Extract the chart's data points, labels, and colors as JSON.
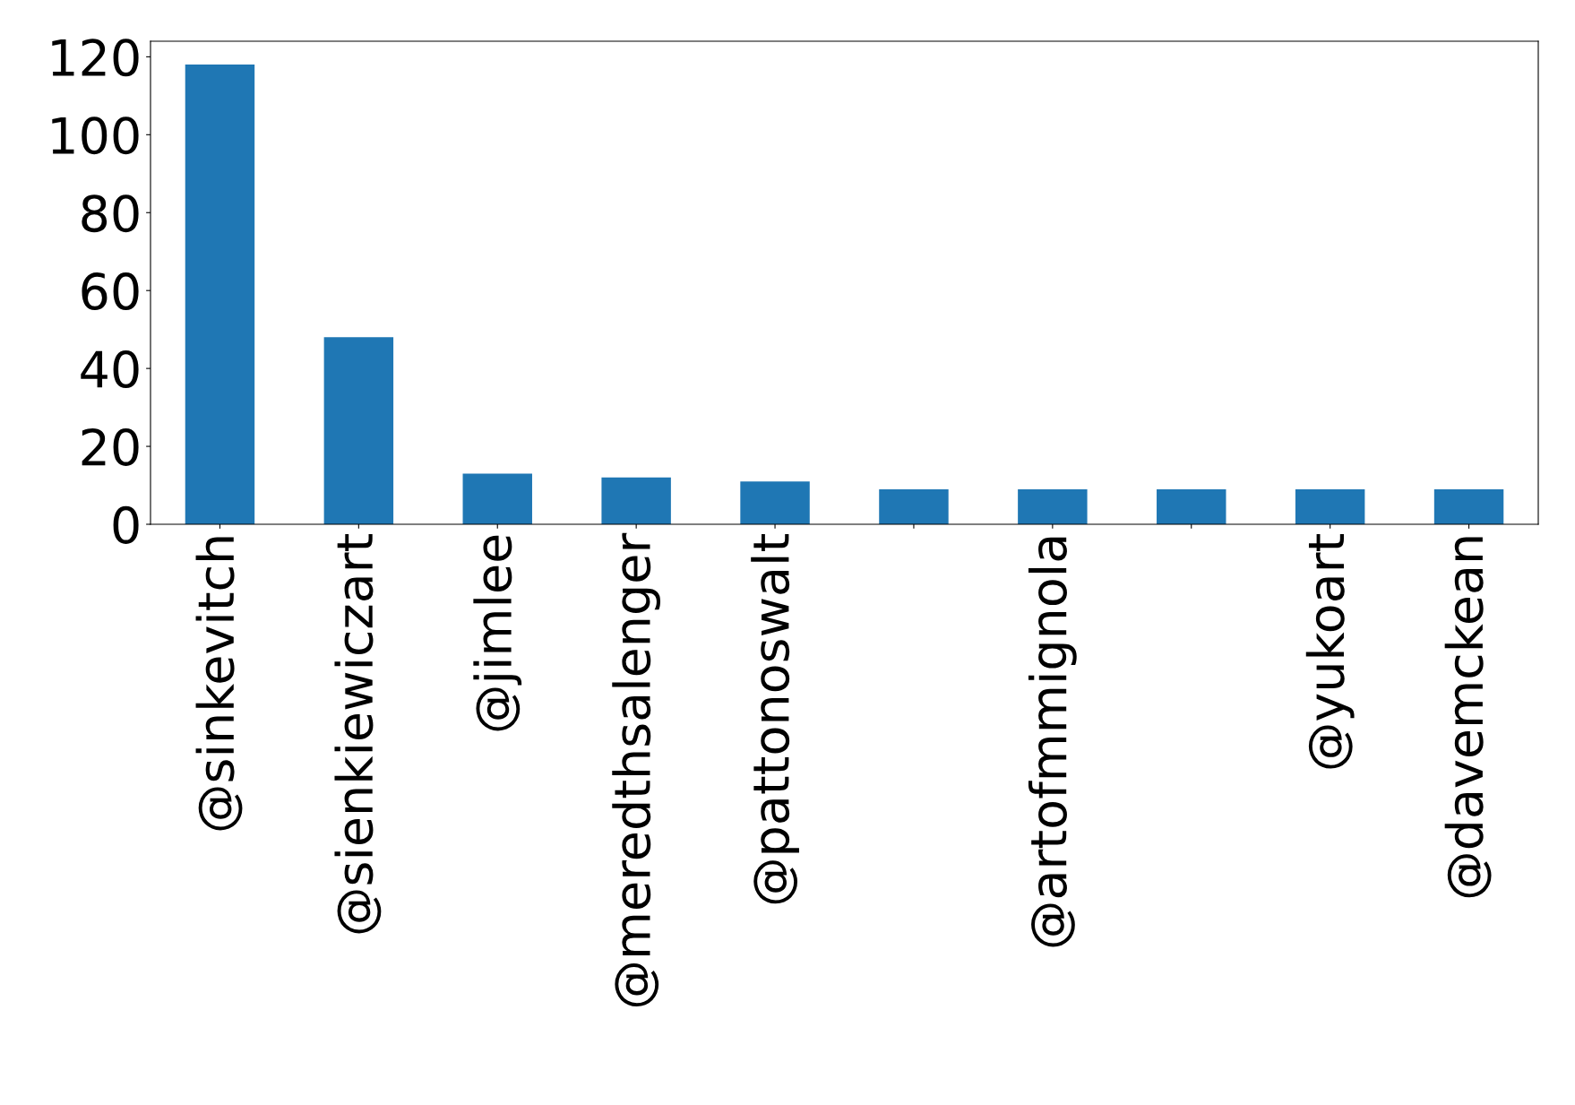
{
  "chart_data": {
    "type": "bar",
    "categories": [
      "@sinkevitch",
      "@sienkiewiczart",
      "@jimlee",
      "@meredthsalenger",
      "@pattonoswalt",
      null,
      "@artofmmignola",
      null,
      "@yukoart",
      "@davemckean"
    ],
    "values": [
      118,
      48,
      13,
      12,
      11,
      9,
      9,
      9,
      9,
      9
    ],
    "color": "#1f77b4",
    "ylim": [
      0,
      124
    ],
    "yticks": [
      0,
      20,
      40,
      60,
      80,
      100,
      120
    ],
    "grid": false,
    "legend": false
  }
}
